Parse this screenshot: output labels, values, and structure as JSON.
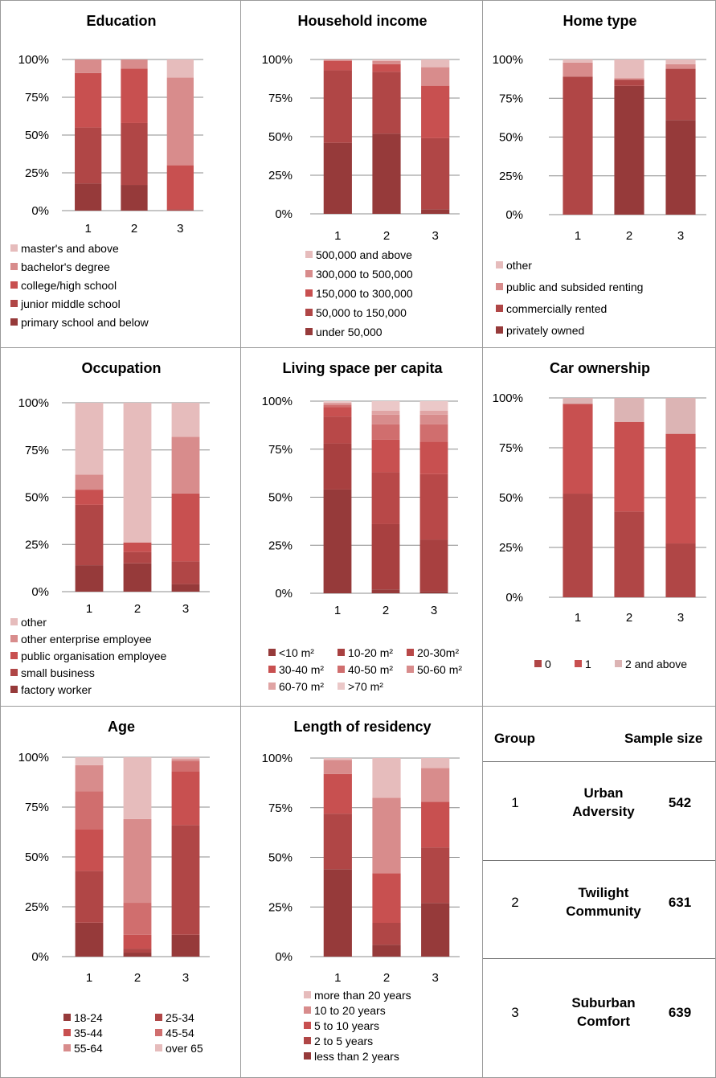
{
  "colors": {
    "c1": "#963a3a",
    "c2": "#b04646",
    "c3": "#c85050",
    "c4": "#d88c8c",
    "c5": "#e6bcbc",
    "c6": "#dcb4b4",
    "c7": "#ebc8c8"
  },
  "chart_data": [
    {
      "id": "education",
      "type": "bar",
      "stacked": true,
      "title": "Education",
      "categories": [
        "1",
        "2",
        "3"
      ],
      "yticks": [
        "0%",
        "25%",
        "50%",
        "75%",
        "100%"
      ],
      "ylim": [
        0,
        100
      ],
      "legend": [
        "master's and above",
        "bachelor's degree",
        "college/high school",
        "junior middle school",
        "primary school and below"
      ],
      "series": [
        {
          "name": "primary school and below",
          "color": "#963a3a",
          "values": [
            18,
            17,
            0
          ]
        },
        {
          "name": "junior middle school",
          "color": "#b04646",
          "values": [
            37,
            41,
            1
          ]
        },
        {
          "name": "college/high school",
          "color": "#c85050",
          "values": [
            36,
            36,
            29
          ]
        },
        {
          "name": "bachelor's degree",
          "color": "#d88c8c",
          "values": [
            9,
            6,
            58
          ]
        },
        {
          "name": "master's and above",
          "color": "#e6bcbc",
          "values": [
            0,
            0,
            12
          ]
        }
      ]
    },
    {
      "id": "income",
      "type": "bar",
      "stacked": true,
      "title": "Household income",
      "categories": [
        "1",
        "2",
        "3"
      ],
      "yticks": [
        "0%",
        "25%",
        "50%",
        "75%",
        "100%"
      ],
      "ylim": [
        0,
        100
      ],
      "legend": [
        "500,000 and above",
        "300,000 to 500,000",
        "150,000 to 300,000",
        "50,000 to 150,000",
        "under 50,000"
      ],
      "series": [
        {
          "name": "under 50,000",
          "color": "#963a3a",
          "values": [
            46,
            52,
            3
          ]
        },
        {
          "name": "50,000 to 150,000",
          "color": "#b04646",
          "values": [
            47,
            40,
            46
          ]
        },
        {
          "name": "150,000 to 300,000",
          "color": "#c85050",
          "values": [
            6,
            5,
            34
          ]
        },
        {
          "name": "300,000 to 500,000",
          "color": "#d88c8c",
          "values": [
            1,
            2,
            12
          ]
        },
        {
          "name": "500,000 and above",
          "color": "#e6bcbc",
          "values": [
            0,
            1,
            5
          ]
        }
      ]
    },
    {
      "id": "hometype",
      "type": "bar",
      "stacked": true,
      "title": "Home type",
      "categories": [
        "1",
        "2",
        "3"
      ],
      "yticks": [
        "0%",
        "25%",
        "50%",
        "75%",
        "100%"
      ],
      "ylim": [
        0,
        100
      ],
      "legend": [
        "other",
        "public and subsided renting",
        "commercially rented",
        "privately owned"
      ],
      "series": [
        {
          "name": "privately owned",
          "color": "#963a3a",
          "values": [
            0,
            83,
            61
          ]
        },
        {
          "name": "commercially rented",
          "color": "#b04646",
          "values": [
            89,
            4,
            33
          ]
        },
        {
          "name": "public and subsided renting",
          "color": "#d88c8c",
          "values": [
            9,
            1,
            3
          ]
        },
        {
          "name": "other",
          "color": "#e6bcbc",
          "values": [
            2,
            12,
            3
          ]
        }
      ]
    },
    {
      "id": "occupation",
      "type": "bar",
      "stacked": true,
      "title": "Occupation",
      "categories": [
        "1",
        "2",
        "3"
      ],
      "yticks": [
        "0%",
        "25%",
        "50%",
        "75%",
        "100%"
      ],
      "ylim": [
        0,
        100
      ],
      "legend": [
        "other",
        "other enterprise employee",
        "public organisation employee",
        "small business",
        "factory worker"
      ],
      "series": [
        {
          "name": "factory worker",
          "color": "#963a3a",
          "values": [
            14,
            15,
            4
          ]
        },
        {
          "name": "small business",
          "color": "#b04646",
          "values": [
            32,
            6,
            12
          ]
        },
        {
          "name": "public organisation employee",
          "color": "#c85050",
          "values": [
            8,
            5,
            36
          ]
        },
        {
          "name": "other enterprise employee",
          "color": "#d88c8c",
          "values": [
            8,
            0,
            30
          ]
        },
        {
          "name": "other",
          "color": "#e6bcbc",
          "values": [
            38,
            74,
            18
          ]
        }
      ]
    },
    {
      "id": "livingspace",
      "type": "bar",
      "stacked": true,
      "title": "Living space per capita",
      "categories": [
        "1",
        "2",
        "3"
      ],
      "yticks": [
        "0%",
        "25%",
        "50%",
        "75%",
        "100%"
      ],
      "ylim": [
        0,
        100
      ],
      "legend": [
        "<10 m²",
        "10-20 m²",
        "20-30m²",
        "30-40 m²",
        "40-50 m²",
        "50-60 m²",
        "60-70 m²",
        ">70 m²"
      ],
      "series": [
        {
          "name": "<10 m²",
          "color": "#963a3a",
          "values": [
            54,
            2,
            1
          ]
        },
        {
          "name": "10-20 m²",
          "color": "#a84040",
          "values": [
            24,
            34,
            27
          ]
        },
        {
          "name": "20-30m²",
          "color": "#b84848",
          "values": [
            14,
            27,
            34
          ]
        },
        {
          "name": "30-40 m²",
          "color": "#c85050",
          "values": [
            5,
            17,
            17
          ]
        },
        {
          "name": "40-50 m²",
          "color": "#d06e6e",
          "values": [
            1,
            8,
            9
          ]
        },
        {
          "name": "50-60 m²",
          "color": "#d88c8c",
          "values": [
            1,
            5,
            5
          ]
        },
        {
          "name": "60-70 m²",
          "color": "#e0a4a4",
          "values": [
            0,
            2,
            2
          ]
        },
        {
          "name": ">70 m²",
          "color": "#ebc8c8",
          "values": [
            1,
            5,
            5
          ]
        }
      ]
    },
    {
      "id": "car",
      "type": "bar",
      "stacked": true,
      "title": "Car ownership",
      "categories": [
        "1",
        "2",
        "3"
      ],
      "yticks": [
        "0%",
        "25%",
        "50%",
        "75%",
        "100%"
      ],
      "ylim": [
        0,
        100
      ],
      "legend": [
        "0",
        "1",
        "2 and above"
      ],
      "series": [
        {
          "name": "0",
          "color": "#b04646",
          "values": [
            52,
            43,
            27
          ]
        },
        {
          "name": "1",
          "color": "#c85050",
          "values": [
            45,
            45,
            55
          ]
        },
        {
          "name": "2 and above",
          "color": "#dcb4b4",
          "values": [
            3,
            12,
            18
          ]
        }
      ]
    },
    {
      "id": "age",
      "type": "bar",
      "stacked": true,
      "title": "Age",
      "categories": [
        "1",
        "2",
        "3"
      ],
      "yticks": [
        "0%",
        "25%",
        "50%",
        "75%",
        "100%"
      ],
      "ylim": [
        0,
        100
      ],
      "legend": [
        "18-24",
        "25-34",
        "35-44",
        "45-54",
        "55-64",
        "over 65"
      ],
      "series": [
        {
          "name": "18-24",
          "color": "#963a3a",
          "values": [
            17,
            2,
            11
          ]
        },
        {
          "name": "25-34",
          "color": "#b04646",
          "values": [
            26,
            2,
            55
          ]
        },
        {
          "name": "35-44",
          "color": "#c85050",
          "values": [
            21,
            7,
            27
          ]
        },
        {
          "name": "45-54",
          "color": "#d06e6e",
          "values": [
            19,
            16,
            5
          ]
        },
        {
          "name": "55-64",
          "color": "#d88c8c",
          "values": [
            13,
            42,
            1
          ]
        },
        {
          "name": "over 65",
          "color": "#e6bcbc",
          "values": [
            4,
            31,
            1
          ]
        }
      ]
    },
    {
      "id": "residency",
      "type": "bar",
      "stacked": true,
      "title": "Length of residency",
      "categories": [
        "1",
        "2",
        "3"
      ],
      "yticks": [
        "0%",
        "25%",
        "50%",
        "75%",
        "100%"
      ],
      "ylim": [
        0,
        100
      ],
      "legend": [
        "more than 20 years",
        "10 to 20 years",
        "5 to 10 years",
        "2 to 5 years",
        "less than 2 years"
      ],
      "series": [
        {
          "name": "less than 2 years",
          "color": "#963a3a",
          "values": [
            44,
            6,
            27
          ]
        },
        {
          "name": "2 to 5 years",
          "color": "#b04646",
          "values": [
            28,
            11,
            28
          ]
        },
        {
          "name": "5 to 10 years",
          "color": "#c85050",
          "values": [
            20,
            25,
            23
          ]
        },
        {
          "name": "10 to 20 years",
          "color": "#d88c8c",
          "values": [
            7,
            38,
            17
          ]
        },
        {
          "name": "more than 20 years",
          "color": "#e6bcbc",
          "values": [
            1,
            20,
            5
          ]
        }
      ]
    }
  ],
  "table": {
    "header_group": "Group",
    "header_size": "Sample size",
    "rows": [
      {
        "group": "1",
        "name_line1": "Urban",
        "name_line2": "Adversity",
        "size": "542"
      },
      {
        "group": "2",
        "name_line1": "Twilight",
        "name_line2": "Community",
        "size": "631"
      },
      {
        "group": "3",
        "name_line1": "Suburban",
        "name_line2": "Comfort",
        "size": "639"
      }
    ]
  }
}
